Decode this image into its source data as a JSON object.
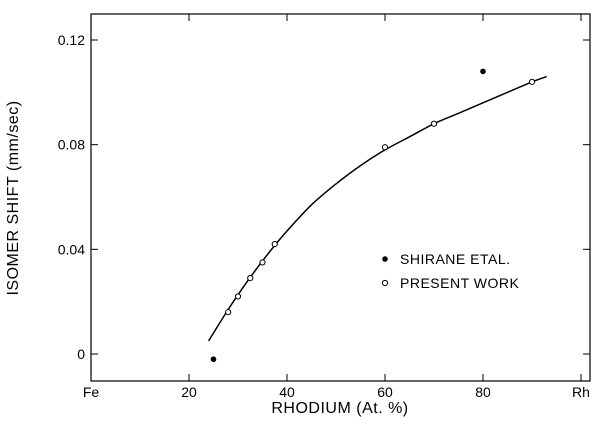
{
  "chart_data": {
    "type": "scatter",
    "title": "",
    "xlabel": "RHODIUM (At. %)",
    "ylabel": "ISOMER SHIFT (mm/sec)",
    "xlim": [
      0,
      100
    ],
    "ylim": [
      -0.012,
      0.13
    ],
    "x_ticks": [
      {
        "value": 0,
        "label": "Fe"
      },
      {
        "value": 20,
        "label": "20"
      },
      {
        "value": 40,
        "label": "40"
      },
      {
        "value": 60,
        "label": "60"
      },
      {
        "value": 80,
        "label": "80"
      },
      {
        "value": 100,
        "label": "Rh"
      }
    ],
    "y_ticks": [
      {
        "value": 0,
        "label": "0"
      },
      {
        "value": 0.04,
        "label": "0.04"
      },
      {
        "value": 0.08,
        "label": "0.08"
      },
      {
        "value": 0.12,
        "label": "0.12"
      }
    ],
    "series": [
      {
        "name": "SHIRANE ETAL.",
        "marker": "filled-circle",
        "points": [
          [
            25,
            -0.002
          ],
          [
            80,
            0.108
          ]
        ]
      },
      {
        "name": "PRESENT WORK",
        "marker": "open-circle",
        "points": [
          [
            28,
            0.016
          ],
          [
            30,
            0.022
          ],
          [
            32.5,
            0.029
          ],
          [
            35,
            0.035
          ],
          [
            37.5,
            0.042
          ],
          [
            60,
            0.079
          ],
          [
            70,
            0.088
          ],
          [
            90,
            0.104
          ]
        ]
      }
    ],
    "fit_curve": [
      [
        24,
        0.005
      ],
      [
        28,
        0.017
      ],
      [
        32,
        0.028
      ],
      [
        36,
        0.038
      ],
      [
        40,
        0.047
      ],
      [
        45,
        0.057
      ],
      [
        50,
        0.065
      ],
      [
        55,
        0.072
      ],
      [
        60,
        0.078
      ],
      [
        65,
        0.083
      ],
      [
        70,
        0.088
      ],
      [
        75,
        0.092
      ],
      [
        80,
        0.096
      ],
      [
        85,
        0.1
      ],
      [
        90,
        0.104
      ],
      [
        93,
        0.106
      ]
    ],
    "legend": {
      "position": "center-right"
    },
    "grid": false
  }
}
